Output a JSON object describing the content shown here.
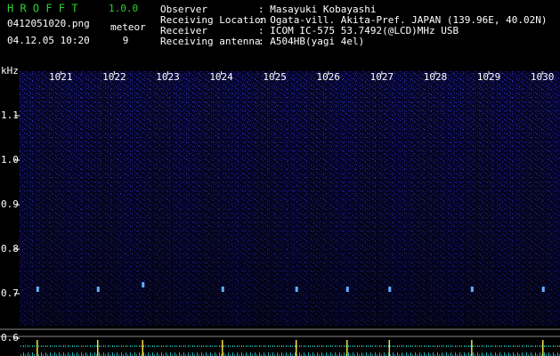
{
  "header": {
    "app": "H R O F F T",
    "version": "1.0.0",
    "file": "0412051020.png",
    "datetime": "04.12.05 10:20",
    "meteor_label": "meteor",
    "meteor_count": 9,
    "info": [
      {
        "label": "Observer",
        "value": ": Masayuki Kobayashi"
      },
      {
        "label": "Receiving Location",
        "value": ": Ogata-vill. Akita-Pref. JAPAN (139.96E, 40.02N)"
      },
      {
        "label": "Receiver",
        "value": ": ICOM IC-575 53.7492(@LCD)MHz USB"
      },
      {
        "label": "Receiving antenna",
        "value": ": A504HB(yagi 4el)"
      }
    ]
  },
  "chart_data": {
    "type": "spectrogram",
    "y_label": "kHz",
    "xlim": [
      1020.23,
      1030.33
    ],
    "xticks": [
      1021,
      1022,
      1023,
      1024,
      1025,
      1026,
      1027,
      1028,
      1029,
      1030
    ],
    "ylim": [
      0.56,
      1.2
    ],
    "yticks": [
      0.6,
      0.7,
      0.8,
      0.9,
      {
        "value": 1,
        "label": "1.0"
      },
      1.1
    ],
    "echoes": {
      "x": [
        1020.56,
        1021.69,
        1022.53,
        1024.02,
        1025.4,
        1026.35,
        1027.14,
        1028.68,
        1030.01
      ],
      "y": [
        0.71,
        0.71,
        0.72,
        0.71,
        0.71,
        0.71,
        0.71,
        0.71,
        0.71
      ]
    }
  }
}
